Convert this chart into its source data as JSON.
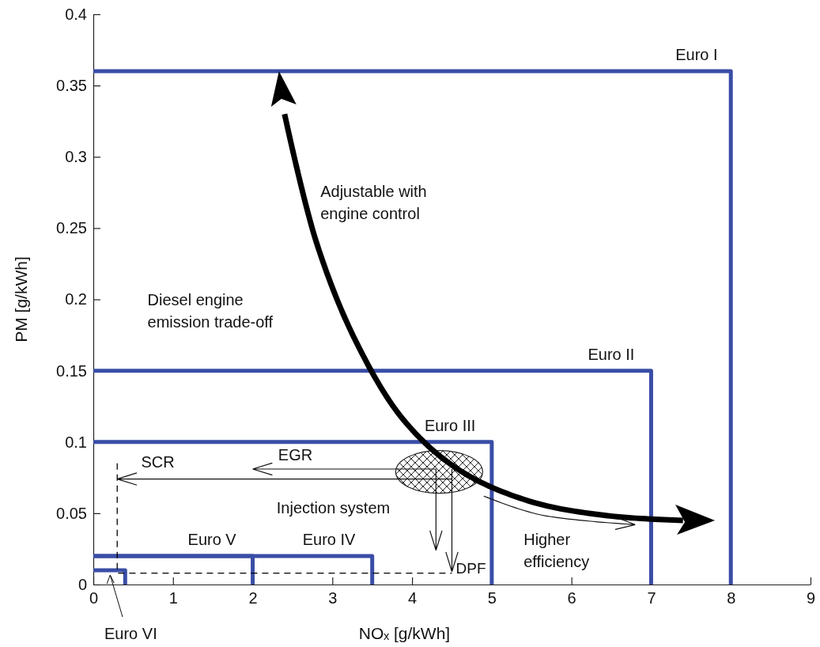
{
  "chart_data": {
    "type": "line",
    "xlabel": "NOₓ [g/kWh]",
    "ylabel": "PM [g/kWh]",
    "xlim": [
      0,
      9
    ],
    "xticks": [
      0,
      1,
      2,
      3,
      4,
      5,
      6,
      7,
      8,
      9
    ],
    "ylim": [
      0,
      0.4
    ],
    "yticks": [
      0,
      0.05,
      0.1,
      0.15,
      0.2,
      0.25,
      0.3,
      0.35,
      0.4
    ],
    "grid": false,
    "marker": "none",
    "series": [
      {
        "name": "Euro I",
        "color": "#3a4da6",
        "x": [
          0,
          8,
          8
        ],
        "values": [
          0.36,
          0.36,
          0
        ]
      },
      {
        "name": "Euro II",
        "color": "#3a4da6",
        "x": [
          0,
          7,
          7
        ],
        "values": [
          0.15,
          0.15,
          0
        ]
      },
      {
        "name": "Euro III",
        "color": "#3a4da6",
        "x": [
          0,
          5,
          5
        ],
        "values": [
          0.1,
          0.1,
          0
        ]
      },
      {
        "name": "Euro IV",
        "color": "#3a4da6",
        "x": [
          0,
          3.5,
          3.5
        ],
        "values": [
          0.02,
          0.02,
          0
        ]
      },
      {
        "name": "Euro V",
        "color": "#3a4da6",
        "x": [
          0,
          2,
          2
        ],
        "values": [
          0.02,
          0.02,
          0
        ]
      },
      {
        "name": "Euro VI",
        "color": "#3a4da6",
        "x": [
          0,
          0.4,
          0.4
        ],
        "values": [
          0.01,
          0.01,
          0
        ]
      },
      {
        "color": "#000000",
        "line_style": "dashed",
        "x": [
          0.3,
          0.3,
          4.5
        ],
        "values": [
          0.085,
          0.008,
          0.008
        ]
      }
    ],
    "annotations": [
      "Adjustable with\nengine control",
      "Diesel engine\nemission trade-off",
      "SCR",
      "EGR",
      "Injection system",
      "DPF",
      "Higher\nefficiency"
    ]
  }
}
